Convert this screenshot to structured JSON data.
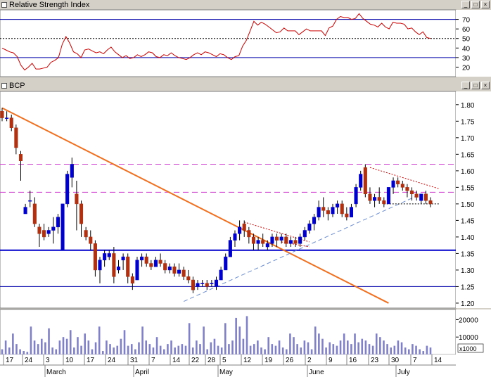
{
  "rsi_panel": {
    "title": "Relative Strength Index"
  },
  "price_panel": {
    "title": "BCP"
  },
  "volume_panel": {
    "unit_label": "x1000"
  },
  "colors": {
    "up": "#0000cc",
    "down": "#b03010",
    "rsi": "#cc0000",
    "resistance": "#d040d0",
    "support": "#0000cc",
    "downtrend": "#f07020",
    "uptrend": "#7090d0",
    "background": "#ffffff",
    "volume": "#8080c8"
  },
  "chart_data": [
    {
      "type": "line",
      "name": "rsi",
      "title": "Relative Strength Index",
      "ylim": [
        10,
        80
      ],
      "yticks": [
        70,
        60,
        50,
        40,
        30,
        20
      ],
      "reference_lines": [
        {
          "value": 70,
          "style": "solid"
        },
        {
          "value": 50,
          "style": "dotted"
        },
        {
          "value": 30,
          "style": "solid"
        }
      ],
      "values": [
        40,
        38,
        36,
        35,
        31,
        22,
        17,
        20,
        24,
        18,
        18,
        19,
        20,
        25,
        27,
        30,
        44,
        52,
        45,
        36,
        34,
        30,
        38,
        39,
        37,
        35,
        36,
        34,
        38,
        41,
        36,
        33,
        30,
        32,
        29,
        30,
        33,
        31,
        33,
        36,
        35,
        31,
        30,
        33,
        32,
        35,
        32,
        30,
        29,
        28,
        30,
        33,
        35,
        33,
        36,
        35,
        33,
        31,
        34,
        33,
        30,
        28,
        31,
        32,
        42,
        48,
        58,
        68,
        64,
        67,
        65,
        62,
        59,
        56,
        57,
        61,
        58,
        58,
        58,
        54,
        57,
        60,
        58,
        58,
        58,
        58,
        53,
        61,
        63,
        70,
        73,
        72,
        72,
        70,
        71,
        76,
        71,
        68,
        65,
        64,
        62,
        66,
        62,
        60,
        67,
        66,
        66,
        65,
        60,
        61,
        57,
        54,
        57,
        51,
        50
      ]
    },
    {
      "type": "candlestick",
      "name": "price",
      "title": "BCP",
      "ylim": [
        1.185,
        1.84
      ],
      "yticks": [
        1.8,
        1.75,
        1.7,
        1.65,
        1.6,
        1.55,
        1.5,
        1.45,
        1.4,
        1.35,
        1.3,
        1.25,
        1.2
      ],
      "x_ticks": [
        "17",
        "24",
        "3",
        "10",
        "17",
        "24",
        "31",
        "7",
        "14",
        "22",
        "28",
        "5",
        "12",
        "19",
        "26",
        "2",
        "9",
        "16",
        "23",
        "30",
        "7",
        "14"
      ],
      "month_labels": [
        "March",
        "April",
        "May",
        "June",
        "July"
      ],
      "horizontal_lines": [
        {
          "value": 1.62,
          "style": "dashed",
          "role": "resistance"
        },
        {
          "value": 1.535,
          "style": "dashed",
          "role": "resistance"
        },
        {
          "value": 1.36,
          "style": "solid-thick",
          "role": "support"
        },
        {
          "value": 1.25,
          "style": "solid",
          "role": "support"
        }
      ],
      "trend_lines": [
        {
          "role": "downtrend",
          "from": [
            0,
            1.79
          ],
          "to": [
            83,
            1.2
          ]
        },
        {
          "role": "uptrend",
          "from": [
            39,
            1.205
          ],
          "to": [
            90,
            1.53
          ]
        },
        {
          "role": "flag",
          "from": [
            52,
            1.445
          ],
          "to": [
            66,
            1.385
          ]
        },
        {
          "role": "flag",
          "from": [
            60,
            1.385
          ],
          "to": [
            66,
            1.37
          ]
        },
        {
          "role": "triangle",
          "from": [
            79,
            1.61
          ],
          "to": [
            94,
            1.545
          ]
        },
        {
          "role": "triangle",
          "from": [
            82,
            1.5
          ],
          "to": [
            94,
            1.5
          ]
        }
      ],
      "candles": [
        [
          1.78,
          1.79,
          1.75,
          1.76
        ],
        [
          1.76,
          1.78,
          1.75,
          1.76
        ],
        [
          1.76,
          1.77,
          1.72,
          1.73
        ],
        [
          1.73,
          1.74,
          1.65,
          1.67
        ],
        [
          1.65,
          1.66,
          1.57,
          1.63
        ],
        [
          1.47,
          1.5,
          1.47,
          1.49
        ],
        [
          1.51,
          1.54,
          1.49,
          1.51
        ],
        [
          1.5,
          1.52,
          1.43,
          1.44
        ],
        [
          1.43,
          1.44,
          1.37,
          1.41
        ],
        [
          1.42,
          1.44,
          1.39,
          1.4
        ],
        [
          1.41,
          1.43,
          1.4,
          1.42
        ],
        [
          1.42,
          1.46,
          1.38,
          1.43
        ],
        [
          1.43,
          1.47,
          1.41,
          1.46
        ],
        [
          1.36,
          1.5,
          1.36,
          1.5
        ],
        [
          1.5,
          1.6,
          1.49,
          1.59
        ],
        [
          1.58,
          1.64,
          1.55,
          1.62
        ],
        [
          1.53,
          1.57,
          1.42,
          1.5
        ],
        [
          1.5,
          1.51,
          1.4,
          1.44
        ],
        [
          1.42,
          1.43,
          1.39,
          1.4
        ],
        [
          1.4,
          1.42,
          1.36,
          1.38
        ],
        [
          1.38,
          1.39,
          1.28,
          1.3
        ],
        [
          1.3,
          1.34,
          1.26,
          1.33
        ],
        [
          1.33,
          1.36,
          1.31,
          1.35
        ],
        [
          1.34,
          1.36,
          1.33,
          1.35
        ],
        [
          1.35,
          1.37,
          1.26,
          1.28
        ],
        [
          1.3,
          1.33,
          1.29,
          1.31
        ],
        [
          1.33,
          1.35,
          1.3,
          1.34
        ],
        [
          1.34,
          1.35,
          1.26,
          1.28
        ],
        [
          1.28,
          1.29,
          1.24,
          1.26
        ],
        [
          1.27,
          1.34,
          1.27,
          1.33
        ],
        [
          1.33,
          1.35,
          1.31,
          1.34
        ],
        [
          1.34,
          1.35,
          1.31,
          1.32
        ],
        [
          1.32,
          1.33,
          1.3,
          1.31
        ],
        [
          1.31,
          1.34,
          1.31,
          1.33
        ],
        [
          1.33,
          1.35,
          1.31,
          1.32
        ],
        [
          1.32,
          1.33,
          1.29,
          1.3
        ],
        [
          1.3,
          1.32,
          1.29,
          1.31
        ],
        [
          1.31,
          1.32,
          1.28,
          1.29
        ],
        [
          1.29,
          1.32,
          1.28,
          1.3
        ],
        [
          1.3,
          1.31,
          1.27,
          1.28
        ],
        [
          1.28,
          1.3,
          1.26,
          1.27
        ],
        [
          1.27,
          1.28,
          1.23,
          1.24
        ],
        [
          1.25,
          1.27,
          1.24,
          1.26
        ],
        [
          1.26,
          1.27,
          1.25,
          1.26
        ],
        [
          1.26,
          1.27,
          1.24,
          1.25
        ],
        [
          1.26,
          1.27,
          1.25,
          1.26
        ],
        [
          1.25,
          1.28,
          1.24,
          1.27
        ],
        [
          1.27,
          1.31,
          1.27,
          1.3
        ],
        [
          1.3,
          1.35,
          1.3,
          1.34
        ],
        [
          1.34,
          1.4,
          1.34,
          1.39
        ],
        [
          1.39,
          1.42,
          1.37,
          1.41
        ],
        [
          1.41,
          1.45,
          1.39,
          1.43
        ],
        [
          1.44,
          1.45,
          1.4,
          1.42
        ],
        [
          1.42,
          1.43,
          1.38,
          1.4
        ],
        [
          1.4,
          1.41,
          1.36,
          1.38
        ],
        [
          1.38,
          1.4,
          1.36,
          1.39
        ],
        [
          1.39,
          1.41,
          1.37,
          1.38
        ],
        [
          1.37,
          1.39,
          1.36,
          1.38
        ],
        [
          1.38,
          1.41,
          1.37,
          1.4
        ],
        [
          1.4,
          1.41,
          1.37,
          1.39
        ],
        [
          1.39,
          1.41,
          1.38,
          1.4
        ],
        [
          1.4,
          1.41,
          1.37,
          1.38
        ],
        [
          1.38,
          1.4,
          1.37,
          1.39
        ],
        [
          1.39,
          1.4,
          1.37,
          1.38
        ],
        [
          1.38,
          1.41,
          1.37,
          1.4
        ],
        [
          1.4,
          1.43,
          1.39,
          1.42
        ],
        [
          1.42,
          1.45,
          1.41,
          1.44
        ],
        [
          1.44,
          1.47,
          1.42,
          1.46
        ],
        [
          1.46,
          1.51,
          1.45,
          1.49
        ],
        [
          1.49,
          1.52,
          1.46,
          1.48
        ],
        [
          1.48,
          1.49,
          1.45,
          1.47
        ],
        [
          1.47,
          1.5,
          1.46,
          1.49
        ],
        [
          1.49,
          1.51,
          1.47,
          1.5
        ],
        [
          1.5,
          1.51,
          1.46,
          1.47
        ],
        [
          1.47,
          1.49,
          1.45,
          1.46
        ],
        [
          1.46,
          1.5,
          1.46,
          1.49
        ],
        [
          1.5,
          1.56,
          1.49,
          1.55
        ],
        [
          1.55,
          1.6,
          1.54,
          1.59
        ],
        [
          1.61,
          1.62,
          1.52,
          1.53
        ],
        [
          1.53,
          1.55,
          1.5,
          1.51
        ],
        [
          1.51,
          1.53,
          1.49,
          1.52
        ],
        [
          1.52,
          1.55,
          1.5,
          1.51
        ],
        [
          1.51,
          1.52,
          1.49,
          1.5
        ],
        [
          1.5,
          1.55,
          1.5,
          1.55
        ],
        [
          1.55,
          1.58,
          1.53,
          1.57
        ],
        [
          1.57,
          1.58,
          1.55,
          1.56
        ],
        [
          1.56,
          1.57,
          1.54,
          1.55
        ],
        [
          1.55,
          1.56,
          1.52,
          1.54
        ],
        [
          1.54,
          1.55,
          1.51,
          1.53
        ],
        [
          1.53,
          1.54,
          1.51,
          1.52
        ],
        [
          1.51,
          1.53,
          1.5,
          1.53
        ],
        [
          1.53,
          1.54,
          1.5,
          1.51
        ],
        [
          1.51,
          1.52,
          1.49,
          1.5
        ]
      ]
    },
    {
      "type": "bar",
      "name": "volume",
      "unit": "x1000",
      "ylim": [
        0,
        25000
      ],
      "yticks": [
        20000,
        10000
      ],
      "values": [
        3000,
        8000,
        4000,
        12000,
        6000,
        3000,
        2000,
        1500,
        16000,
        8000,
        6000,
        9000,
        7000,
        15000,
        4000,
        3000,
        8000,
        10000,
        9000,
        14000,
        4000,
        10000,
        5000,
        12000,
        8000,
        3000,
        7000,
        16000,
        2000,
        8000,
        6000,
        4000,
        5000,
        9000,
        14000,
        5000,
        6000,
        3000,
        7000,
        16000,
        8000,
        6000,
        4000,
        10000,
        5000,
        3000,
        6000,
        8000,
        4000,
        5000,
        6000,
        5000,
        18000,
        4000,
        8000,
        6000,
        16000,
        3000,
        7000,
        9000,
        5000,
        4000,
        18000,
        6000,
        8000,
        21000,
        16000,
        9000,
        22000,
        5000,
        6000,
        8000,
        4000,
        3000,
        10000,
        6000,
        5000,
        8000,
        4000,
        3000,
        12000,
        10000,
        6000,
        4000,
        8000,
        7000,
        3000,
        16000,
        12000,
        9000,
        4000,
        7000,
        6000,
        5000,
        8000,
        12000,
        8000,
        6000,
        12000,
        7000,
        9000,
        8000,
        6000,
        5000,
        12000,
        10000,
        8000,
        6000,
        4000,
        5000,
        8000,
        7000,
        4000,
        3000,
        6000,
        5000,
        3000,
        2000,
        5000,
        4000
      ]
    }
  ]
}
